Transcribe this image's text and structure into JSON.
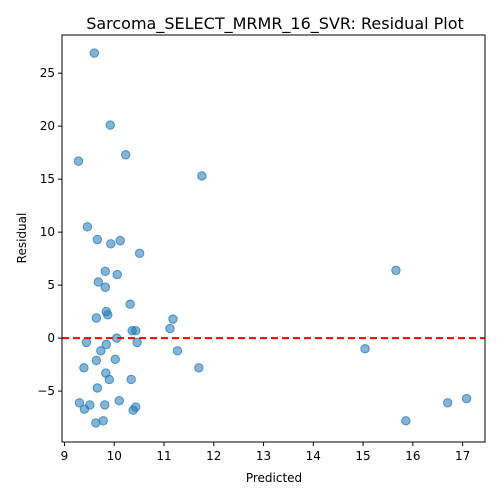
{
  "chart_data": {
    "type": "scatter",
    "title": "Sarcoma_SELECT_MRMR_16_SVR: Residual Plot",
    "xlabel": "Predicted",
    "ylabel": "Residual",
    "xlim": [
      8.95,
      17.45
    ],
    "ylim": [
      -9.8,
      28.6
    ],
    "xticks": [
      9,
      10,
      11,
      12,
      13,
      14,
      15,
      16,
      17
    ],
    "yticks": [
      -5,
      0,
      5,
      10,
      15,
      20,
      25
    ],
    "grid": false,
    "reference_line": {
      "y": 0,
      "color": "#ff0000",
      "style": "dashed"
    },
    "marker_color": "#1f77b4",
    "points": [
      {
        "x": 9.6,
        "y": 26.9
      },
      {
        "x": 9.92,
        "y": 20.1
      },
      {
        "x": 10.23,
        "y": 17.3
      },
      {
        "x": 9.28,
        "y": 16.7
      },
      {
        "x": 11.76,
        "y": 15.3
      },
      {
        "x": 9.46,
        "y": 10.5
      },
      {
        "x": 9.66,
        "y": 9.3
      },
      {
        "x": 9.93,
        "y": 8.9
      },
      {
        "x": 10.12,
        "y": 9.2
      },
      {
        "x": 10.51,
        "y": 8.0
      },
      {
        "x": 9.82,
        "y": 6.3
      },
      {
        "x": 10.06,
        "y": 6.0
      },
      {
        "x": 15.66,
        "y": 6.4
      },
      {
        "x": 9.68,
        "y": 5.3
      },
      {
        "x": 9.82,
        "y": 4.8
      },
      {
        "x": 10.32,
        "y": 3.2
      },
      {
        "x": 9.84,
        "y": 2.5
      },
      {
        "x": 9.87,
        "y": 2.2
      },
      {
        "x": 9.64,
        "y": 1.9
      },
      {
        "x": 11.18,
        "y": 1.8
      },
      {
        "x": 10.36,
        "y": 0.7
      },
      {
        "x": 10.43,
        "y": 0.7
      },
      {
        "x": 11.12,
        "y": 0.9
      },
      {
        "x": 10.05,
        "y": 0.0
      },
      {
        "x": 9.44,
        "y": -0.4
      },
      {
        "x": 10.46,
        "y": -0.4
      },
      {
        "x": 9.84,
        "y": -0.6
      },
      {
        "x": 9.73,
        "y": -1.2
      },
      {
        "x": 11.27,
        "y": -1.2
      },
      {
        "x": 15.04,
        "y": -1.0
      },
      {
        "x": 9.64,
        "y": -2.1
      },
      {
        "x": 10.02,
        "y": -2.0
      },
      {
        "x": 9.39,
        "y": -2.8
      },
      {
        "x": 11.7,
        "y": -2.8
      },
      {
        "x": 9.83,
        "y": -3.3
      },
      {
        "x": 9.9,
        "y": -3.9
      },
      {
        "x": 10.34,
        "y": -3.9
      },
      {
        "x": 9.66,
        "y": -4.7
      },
      {
        "x": 9.3,
        "y": -6.1
      },
      {
        "x": 9.51,
        "y": -6.3
      },
      {
        "x": 9.81,
        "y": -6.3
      },
      {
        "x": 10.1,
        "y": -5.9
      },
      {
        "x": 10.43,
        "y": -6.5
      },
      {
        "x": 9.4,
        "y": -6.7
      },
      {
        "x": 10.38,
        "y": -6.8
      },
      {
        "x": 9.78,
        "y": -7.8
      },
      {
        "x": 9.63,
        "y": -8.0
      },
      {
        "x": 15.86,
        "y": -7.8
      },
      {
        "x": 16.7,
        "y": -6.1
      },
      {
        "x": 17.08,
        "y": -5.7
      }
    ]
  }
}
